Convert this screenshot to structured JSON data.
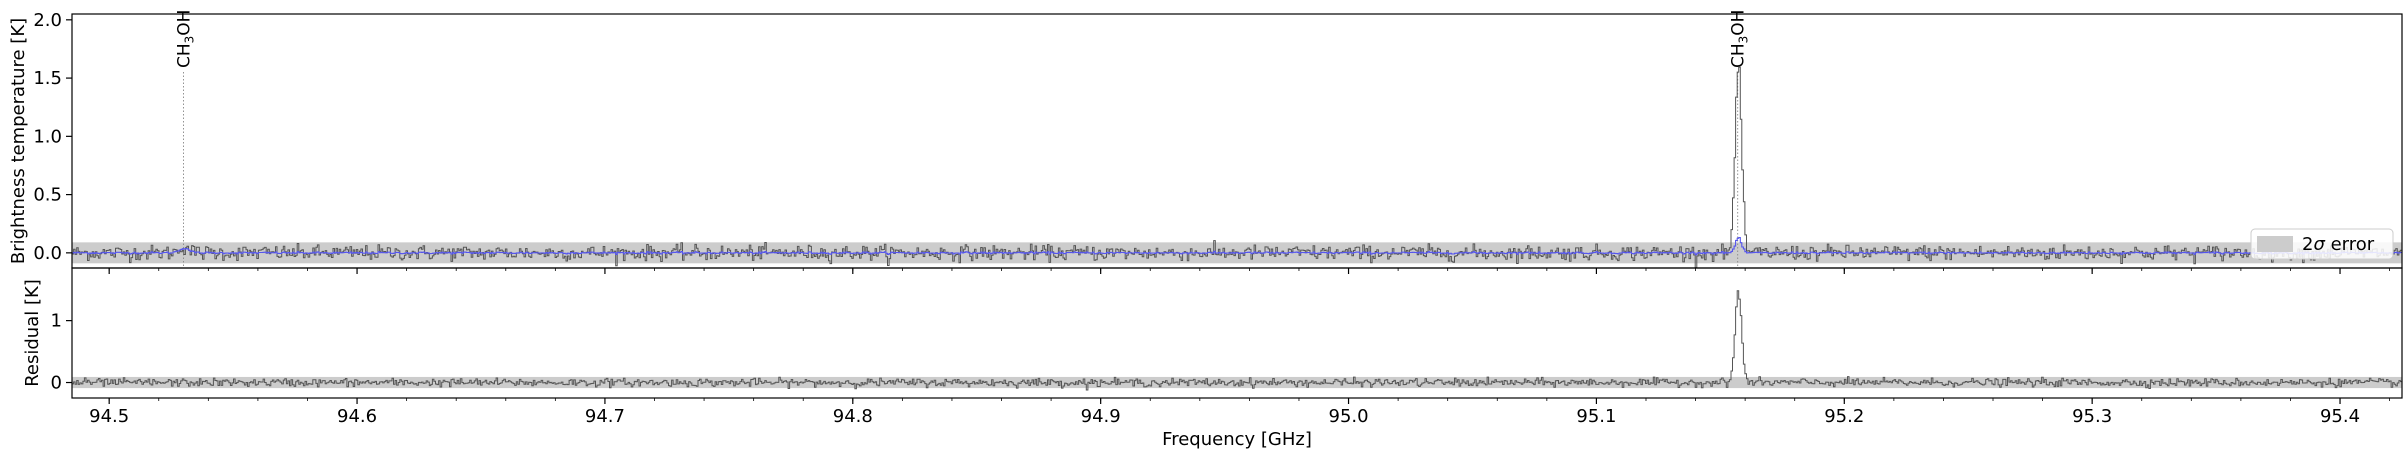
{
  "chart_data": {
    "type": "line",
    "xlabel": "Frequency [GHz]",
    "xlim": [
      94.485,
      95.425
    ],
    "x_ticks": [
      94.5,
      94.6,
      94.7,
      94.8,
      94.9,
      95.0,
      95.1,
      95.2,
      95.3,
      95.4
    ],
    "x_tick_labels": [
      "94.5",
      "94.6",
      "94.7",
      "94.8",
      "94.9",
      "95.0",
      "95.1",
      "95.2",
      "95.3",
      "95.4"
    ],
    "panels": [
      {
        "name": "spectrum",
        "ylabel": "Brightness temperature [K]",
        "ylim": [
          -0.13,
          2.05
        ],
        "y_ticks": [
          0.0,
          0.5,
          1.0,
          1.5,
          2.0
        ],
        "y_tick_labels": [
          "0.0",
          "0.5",
          "1.0",
          "1.5",
          "2.0"
        ],
        "error_band": {
          "sigma": 0.045,
          "label_prefix": "2",
          "label_symbol": "σ",
          "label_suffix": " error",
          "color": "#cccccc"
        },
        "noise_rms": 0.032,
        "baseline": 0.0,
        "series": [
          {
            "role": "observed",
            "color": "#555555",
            "peaks": [
              {
                "x": 95.157,
                "amp": 1.6,
                "width": 0.0013
              },
              {
                "x": 94.53,
                "amp": 0.05,
                "width": 0.002
              }
            ]
          },
          {
            "role": "model",
            "color": "#5555ee",
            "peaks": [
              {
                "x": 95.157,
                "amp": 0.13,
                "width": 0.0012
              },
              {
                "x": 94.53,
                "amp": 0.04,
                "width": 0.002
              }
            ]
          }
        ],
        "annotations": [
          {
            "x": 94.53,
            "label_main": "CH",
            "label_sub": "3",
            "label_end": "OH"
          },
          {
            "x": 95.157,
            "label_main": "CH",
            "label_sub": "3",
            "label_end": "OH"
          }
        ],
        "legend_position": "right"
      },
      {
        "name": "residual",
        "ylabel": "Residual [K]",
        "ylim": [
          -0.25,
          1.85
        ],
        "y_ticks": [
          0,
          1
        ],
        "y_tick_labels": [
          "0",
          "1"
        ],
        "error_band": {
          "sigma": 0.045,
          "color": "#cccccc"
        },
        "noise_rms": 0.032,
        "baseline": 0.0,
        "series": [
          {
            "role": "residual",
            "color": "#555555",
            "peaks": [
              {
                "x": 95.157,
                "amp": 1.47,
                "width": 0.0013
              }
            ]
          }
        ]
      }
    ]
  }
}
